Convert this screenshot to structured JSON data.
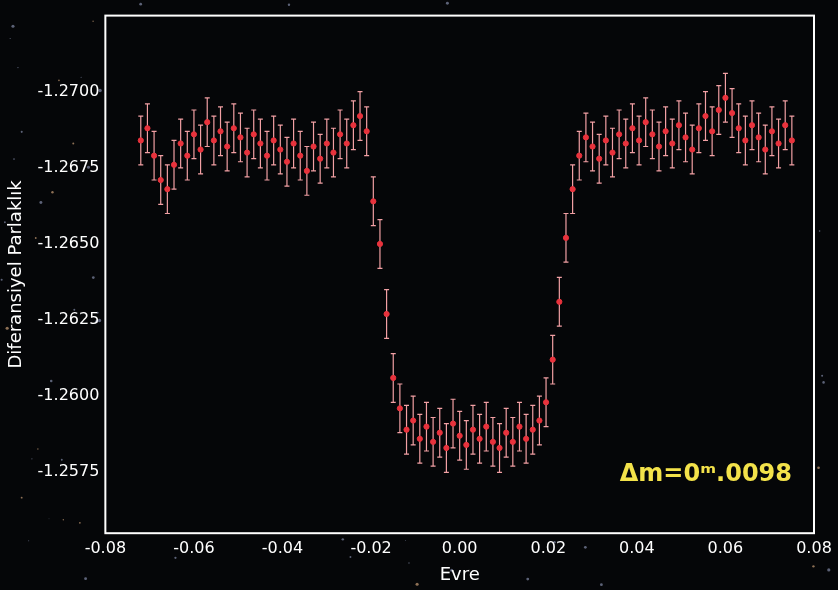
{
  "chart_data": {
    "type": "scatter",
    "x_label": "Evre",
    "y_label": "Diferansiyel Parlaklık",
    "annotations": [
      "Δm=0ᵐ.0098"
    ],
    "color": "#e8323c",
    "marker": "circle",
    "grid": false,
    "xlim": [
      -0.08,
      0.08
    ],
    "xticks": [
      -0.08,
      -0.06,
      -0.04,
      -0.02,
      {
        "value": 0,
        "label": "0.00"
      },
      0.02,
      0.04,
      0.06,
      0.08
    ],
    "ylim": [
      -1.2725,
      -1.2555
    ],
    "yticks": [
      {
        "value": -1.27,
        "label": "-1.2700"
      },
      {
        "value": -1.2675,
        "label": "-1.2675"
      },
      {
        "value": -1.265,
        "label": "-1.2650"
      },
      {
        "value": -1.2625,
        "label": "-1.2625"
      },
      {
        "value": -1.26,
        "label": "-1.2600"
      },
      {
        "value": -1.2575,
        "label": "-1.2575"
      }
    ],
    "x": [
      -0.072,
      -0.0705,
      -0.069,
      -0.0675,
      -0.066,
      -0.0645,
      -0.063,
      -0.0615,
      -0.06,
      -0.0585,
      -0.057,
      -0.0555,
      -0.054,
      -0.0525,
      -0.051,
      -0.0495,
      -0.048,
      -0.0465,
      -0.045,
      -0.0435,
      -0.042,
      -0.0405,
      -0.039,
      -0.0375,
      -0.036,
      -0.0345,
      -0.033,
      -0.0315,
      -0.03,
      -0.0285,
      -0.027,
      -0.0255,
      -0.024,
      -0.0225,
      -0.021,
      -0.0195,
      -0.018,
      -0.0165,
      -0.015,
      -0.0135,
      -0.012,
      -0.0105,
      -0.009,
      -0.0075,
      -0.006,
      -0.0045,
      -0.003,
      -0.0015,
      0.0,
      0.0015,
      0.003,
      0.0045,
      0.006,
      0.0075,
      0.009,
      0.0105,
      0.012,
      0.0135,
      0.015,
      0.0165,
      0.018,
      0.0195,
      0.021,
      0.0225,
      0.024,
      0.0255,
      0.027,
      0.0285,
      0.03,
      0.0315,
      0.033,
      0.0345,
      0.036,
      0.0375,
      0.039,
      0.0405,
      0.042,
      0.0435,
      0.045,
      0.0465,
      0.048,
      0.0495,
      0.051,
      0.0525,
      0.054,
      0.0555,
      0.057,
      0.0585,
      0.06,
      0.0615,
      0.063,
      0.0645,
      0.066,
      0.0675,
      0.069,
      0.0705,
      0.072,
      0.0735,
      0.075
    ],
    "values": [
      -1.2684,
      -1.2688,
      -1.2679,
      -1.2671,
      -1.2668,
      -1.2676,
      -1.2683,
      -1.2679,
      -1.2686,
      -1.2681,
      -1.269,
      -1.2684,
      -1.2687,
      -1.2682,
      -1.2688,
      -1.2685,
      -1.268,
      -1.2686,
      -1.2683,
      -1.2679,
      -1.2684,
      -1.2681,
      -1.2677,
      -1.2683,
      -1.2679,
      -1.2674,
      -1.2682,
      -1.2678,
      -1.2683,
      -1.268,
      -1.2686,
      -1.2683,
      -1.2689,
      -1.2692,
      -1.2687,
      -1.2664,
      -1.265,
      -1.2627,
      -1.2606,
      -1.2596,
      -1.2589,
      -1.2592,
      -1.2586,
      -1.259,
      -1.2585,
      -1.2588,
      -1.2583,
      -1.2591,
      -1.2587,
      -1.2584,
      -1.2589,
      -1.2586,
      -1.259,
      -1.2585,
      -1.2583,
      -1.2588,
      -1.2585,
      -1.259,
      -1.2586,
      -1.2589,
      -1.2592,
      -1.2598,
      -1.2612,
      -1.2631,
      -1.2652,
      -1.2668,
      -1.2679,
      -1.2685,
      -1.2682,
      -1.2678,
      -1.2684,
      -1.268,
      -1.2686,
      -1.2683,
      -1.2688,
      -1.2684,
      -1.269,
      -1.2686,
      -1.2682,
      -1.2687,
      -1.2683,
      -1.2689,
      -1.2685,
      -1.2681,
      -1.2688,
      -1.2692,
      -1.2687,
      -1.2694,
      -1.2698,
      -1.2693,
      -1.2688,
      -1.2684,
      -1.2689,
      -1.2685,
      -1.2681,
      -1.2687,
      -1.2683,
      -1.2689,
      -1.2684
    ],
    "error": 0.0008
  }
}
